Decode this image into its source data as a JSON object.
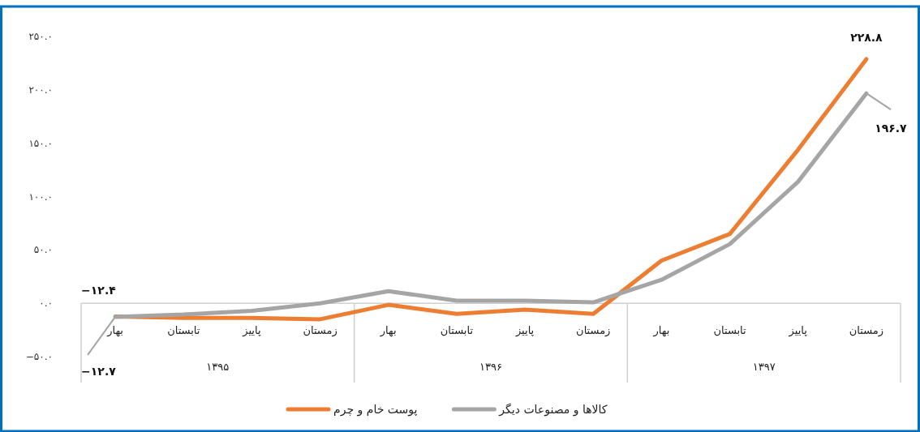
{
  "chart_data": {
    "type": "line",
    "categories": [
      "بهار",
      "تابستان",
      "پاییز",
      "زمستان",
      "بهار",
      "تابستان",
      "پاییز",
      "زمستان",
      "بهار",
      "تابستان",
      "پاییز",
      "زمستان"
    ],
    "series": [
      {
        "name": "پوست خام و چرم",
        "color": "#ed7d31",
        "values": [
          -12.4,
          -13.7,
          -13.7,
          -15,
          -1.5,
          -10,
          -6,
          -10,
          40,
          65,
          144,
          228.8
        ],
        "value_labels": [
          "−۱۲.۴",
          null,
          null,
          null,
          null,
          null,
          null,
          null,
          null,
          null,
          null,
          "۲۲۸.۸"
        ]
      },
      {
        "name": "کالاها و مصنوعات دیگر",
        "color": "#a5a5a5",
        "values": [
          -12.7,
          -10.6,
          -7,
          0,
          11.4,
          2.3,
          2.3,
          0.8,
          22,
          55.5,
          114,
          196.7
        ],
        "value_labels": [
          "−۱۲.۷",
          null,
          null,
          null,
          null,
          null,
          null,
          null,
          null,
          null,
          null,
          "۱۹۶.۷"
        ]
      }
    ],
    "ylim": [
      -50,
      250
    ],
    "yticks": [
      {
        "value": -50,
        "label": "−۵۰.۰"
      },
      {
        "value": 0,
        "label": "۰.۰"
      },
      {
        "value": 50,
        "label": "۵۰.۰"
      },
      {
        "value": 100,
        "label": "۱۰۰.۰"
      },
      {
        "value": 150,
        "label": "۱۵۰.۰"
      },
      {
        "value": 200,
        "label": "۲۰۰.۰"
      },
      {
        "value": 250,
        "label": "۲۵۰.۰"
      }
    ],
    "annotations": [
      "۱۳۹۵",
      "۱۳۹۶",
      "۱۳۹۷"
    ],
    "legend": "bottom"
  }
}
